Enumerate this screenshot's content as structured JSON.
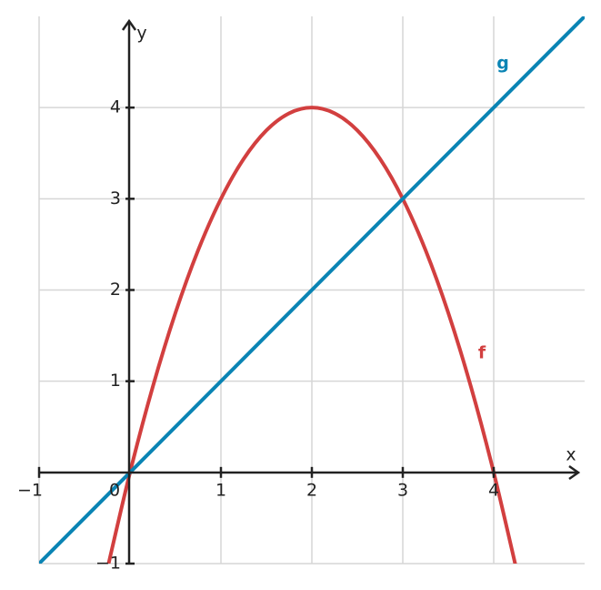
{
  "chart_data": {
    "type": "line",
    "xlabel": "x",
    "ylabel": "y",
    "xlim": [
      -1,
      5
    ],
    "ylim": [
      -1,
      5
    ],
    "xticks": [
      {
        "value": -1,
        "label": "−1"
      },
      0,
      1,
      2,
      3,
      4
    ],
    "yticks": [
      {
        "value": -1,
        "label": "−1"
      },
      1,
      2,
      3,
      4
    ],
    "grid": true,
    "series": [
      {
        "name": "f",
        "color": "#d23f3f",
        "x": [
          -0.25,
          0,
          0.25,
          0.5,
          0.75,
          1,
          1.25,
          1.5,
          1.75,
          2,
          2.25,
          2.5,
          2.75,
          3,
          3.25,
          3.5,
          3.75,
          4,
          4.25
        ],
        "values": [
          -1.0625,
          0,
          0.9375,
          1.75,
          2.4375,
          3,
          3.4375,
          3.75,
          3.9375,
          4,
          3.9375,
          3.75,
          3.4375,
          3,
          2.4375,
          1.75,
          0.9375,
          0,
          -1.0625
        ]
      },
      {
        "name": "g",
        "color": "#0a84b4",
        "x": [
          -1,
          5
        ],
        "values": [
          -1,
          5
        ]
      }
    ]
  }
}
